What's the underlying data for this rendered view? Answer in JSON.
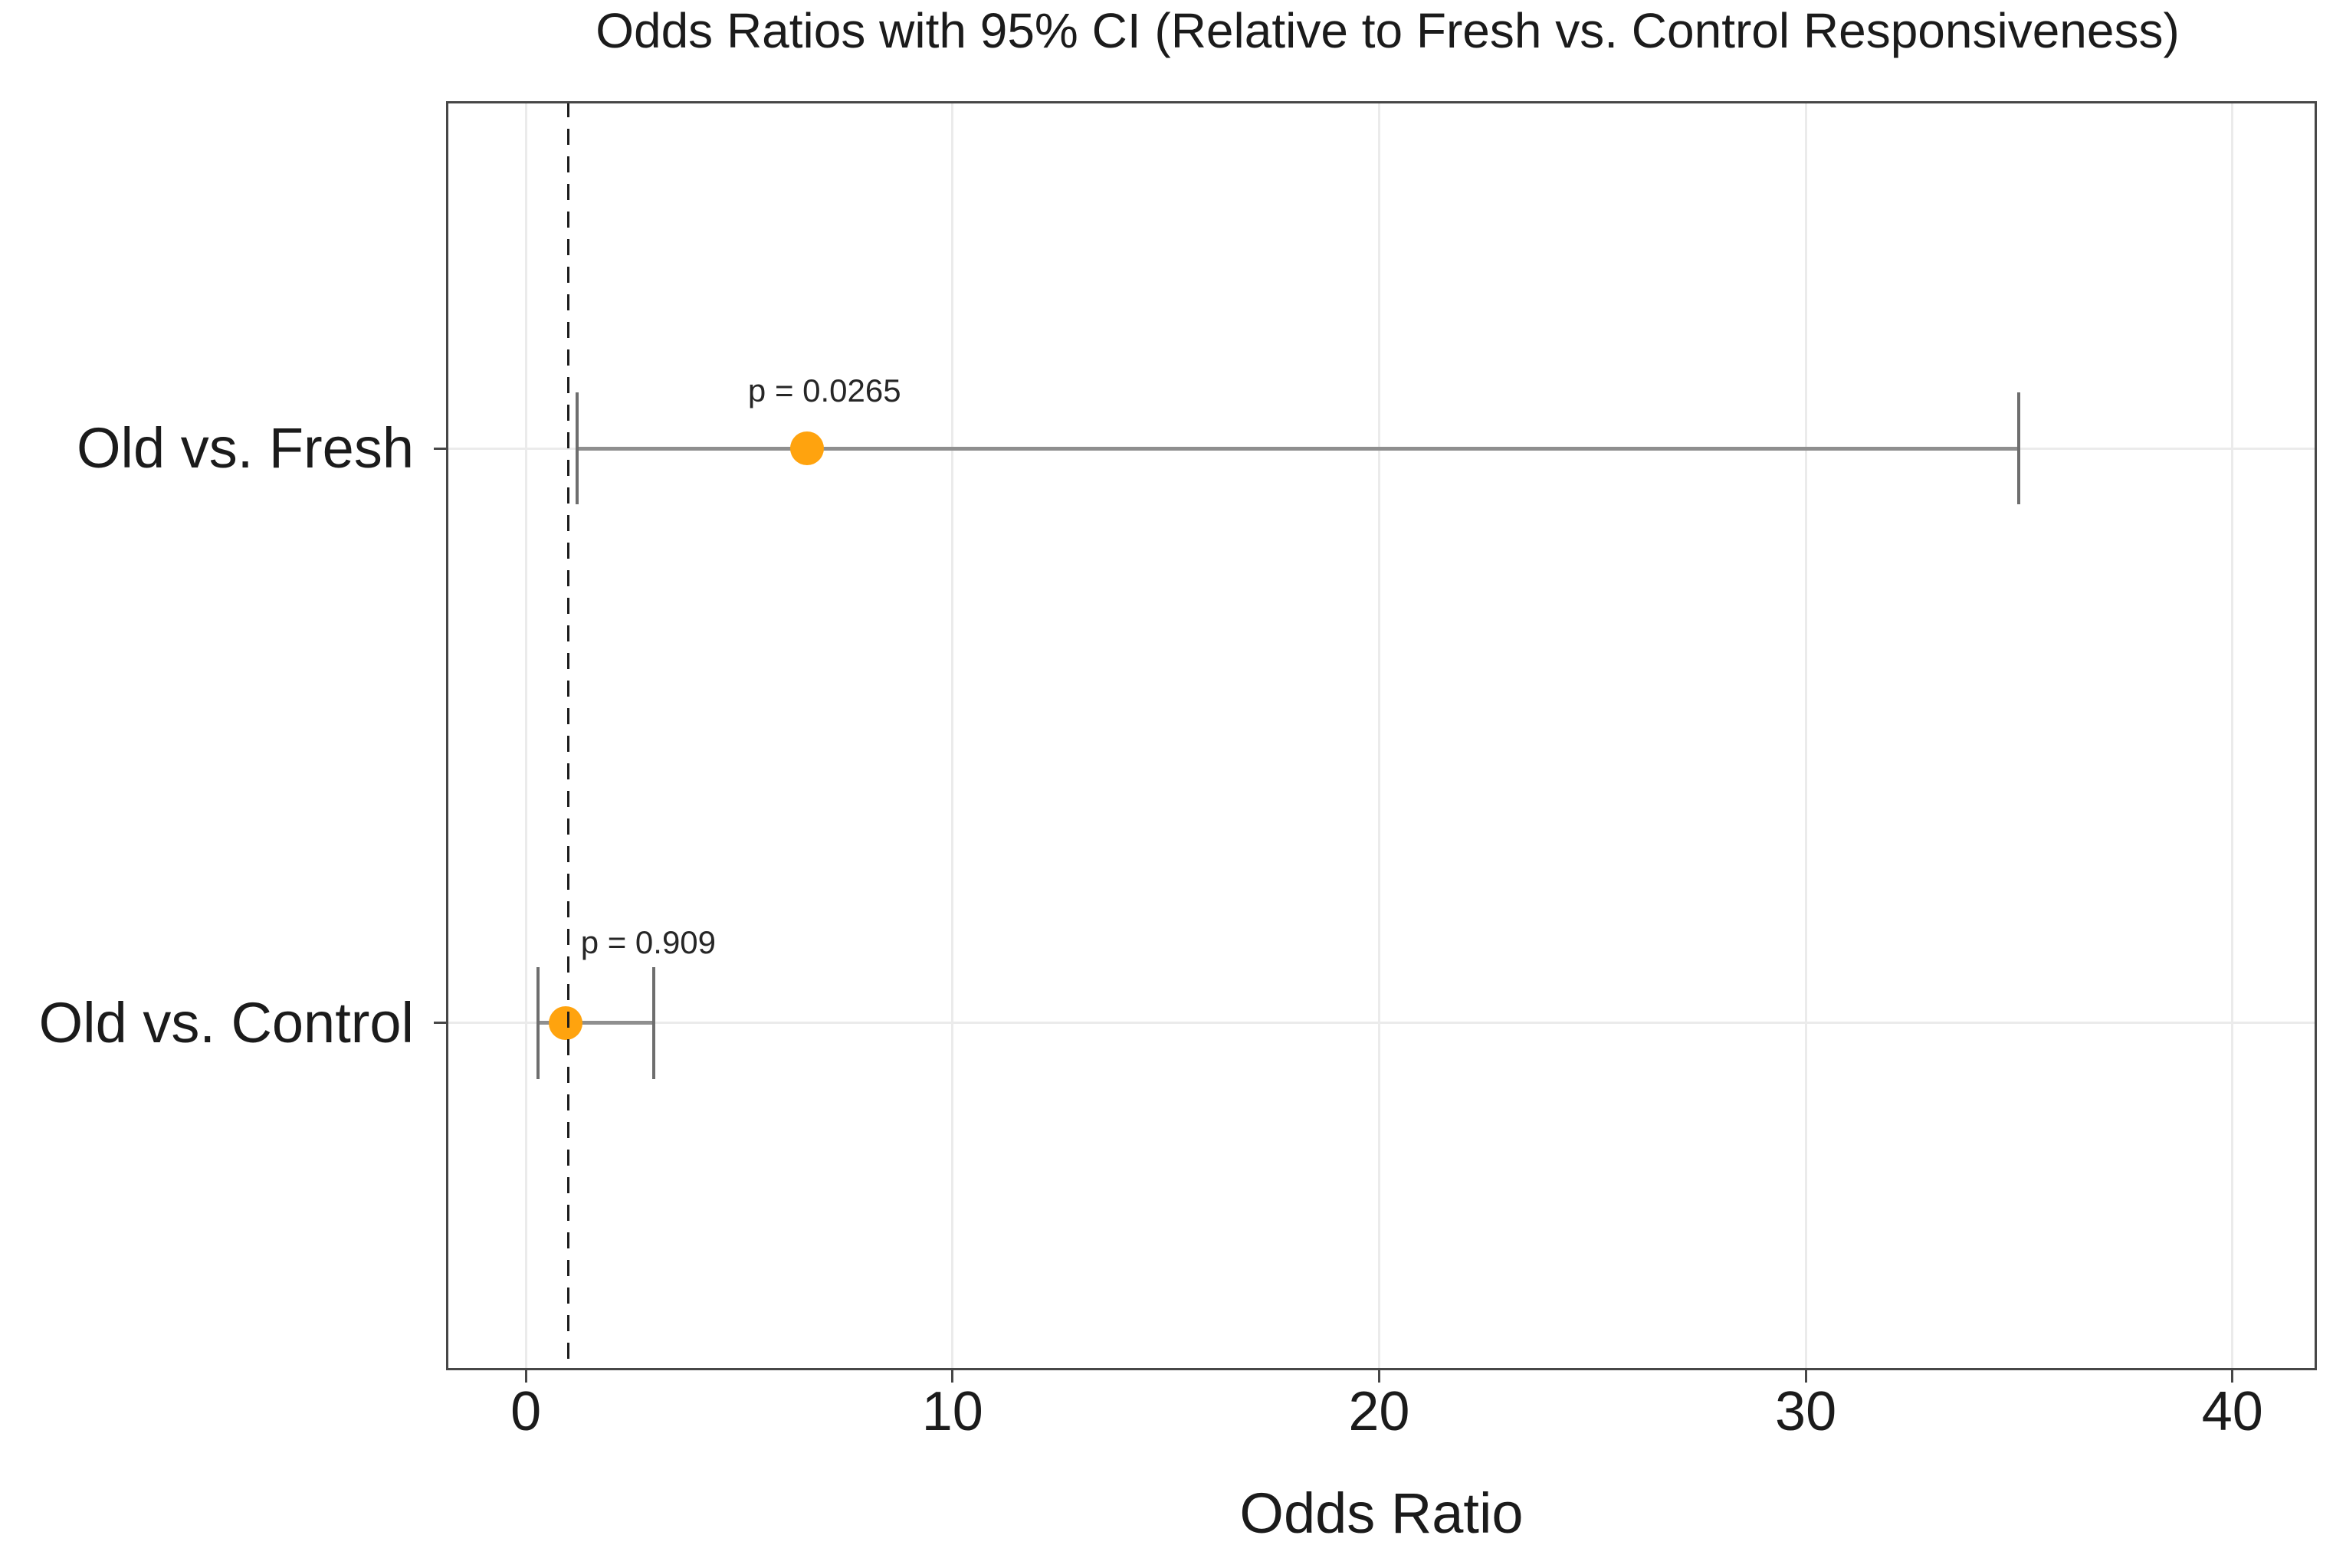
{
  "chart_data": {
    "type": "scatter",
    "subtype": "forest-plot",
    "title": "Odds Ratios with 95% CI (Relative to Fresh vs. Control Responsiveness)",
    "xlabel": "Odds Ratio",
    "ylabel": "",
    "x_ticks": [
      0,
      10,
      20,
      30,
      40
    ],
    "xlim": [
      -1.87,
      41.98
    ],
    "grid": "major-only",
    "legend": "none",
    "reference_line": {
      "x": 1,
      "style": "dashed",
      "color": "#1c1c1c"
    },
    "colors": {
      "point": "#FFA30E",
      "ci_line": "#8f8f8f",
      "ci_cap": "#6e6e6e",
      "gridline": "#ebebeb",
      "panel_border": "#474747",
      "text": "#1b1b1b"
    },
    "rows": [
      {
        "label": "Old vs. Fresh",
        "odds_ratio": 6.6,
        "ci_low": 1.2,
        "ci_high": 35.0,
        "p_label": "p = 0.0265",
        "y_frac": 0.2736,
        "p_label_x": 7.0,
        "p_label_dy": -75
      },
      {
        "label": "Old vs. Control",
        "odds_ratio": 0.93,
        "ci_low": 0.29,
        "ci_high": 3.0,
        "p_label": "p = 0.909",
        "y_frac": 0.7264,
        "p_label_x": 2.87,
        "p_label_dy": -105
      }
    ]
  }
}
